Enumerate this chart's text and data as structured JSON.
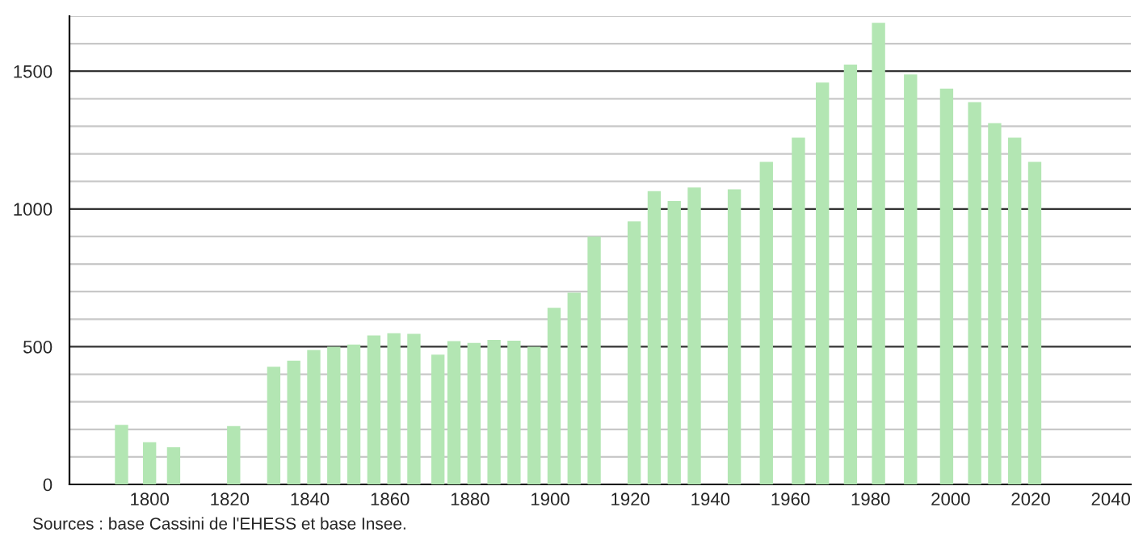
{
  "chart_data": {
    "type": "bar",
    "x": [
      1793,
      1800,
      1806,
      1821,
      1831,
      1836,
      1841,
      1846,
      1851,
      1856,
      1861,
      1866,
      1872,
      1876,
      1881,
      1886,
      1891,
      1896,
      1901,
      1906,
      1911,
      1921,
      1926,
      1931,
      1936,
      1946,
      1954,
      1962,
      1968,
      1975,
      1982,
      1990,
      1999,
      2006,
      2011,
      2016,
      2021
    ],
    "values": [
      216,
      153,
      135,
      212,
      427,
      449,
      488,
      500,
      508,
      541,
      549,
      547,
      471,
      520,
      514,
      525,
      522,
      500,
      641,
      696,
      900,
      955,
      1065,
      1029,
      1078,
      1071,
      1171,
      1259,
      1459,
      1524,
      1676,
      1488,
      1437,
      1388,
      1312,
      1259,
      1171
    ],
    "color": "#b3e6b3",
    "xlim": [
      1780,
      2045
    ],
    "xticks": [
      1800,
      1820,
      1840,
      1860,
      1880,
      1900,
      1920,
      1940,
      1960,
      1980,
      2000,
      2020,
      2040
    ],
    "ylim": [
      0,
      1700
    ],
    "yticks": [
      0,
      {
        "value": 100,
        "label": null
      },
      {
        "value": 200,
        "label": null
      },
      {
        "value": 300,
        "label": null
      },
      {
        "value": 400,
        "label": null
      },
      500,
      {
        "value": 600,
        "label": null
      },
      {
        "value": 700,
        "label": null
      },
      {
        "value": 800,
        "label": null
      },
      {
        "value": 900,
        "label": null
      },
      1000,
      {
        "value": 1100,
        "label": null
      },
      {
        "value": 1200,
        "label": null
      },
      {
        "value": 1300,
        "label": null
      },
      {
        "value": 1400,
        "label": null
      },
      1500,
      {
        "value": 1600,
        "label": null
      },
      {
        "value": 1700,
        "label": null
      }
    ],
    "grid": "y",
    "annotations": [
      "Sources : base Cassini de l'EHESS et base Insee."
    ]
  }
}
